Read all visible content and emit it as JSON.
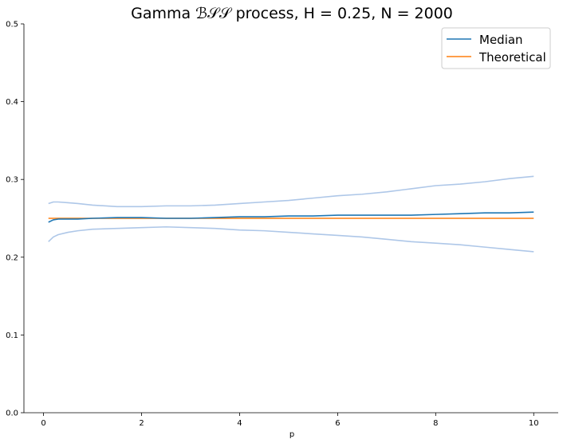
{
  "chart_data": {
    "type": "line",
    "title": "Gamma ℬ𝒮𝒮 process, H = 0.25, N = 2000",
    "xlabel": "p",
    "ylabel": "",
    "xlim": [
      -0.4,
      10.5
    ],
    "ylim": [
      0.0,
      0.5
    ],
    "xticks": [
      0,
      2,
      4,
      6,
      8,
      10
    ],
    "yticks": [
      0.0,
      0.1,
      0.2,
      0.3,
      0.4,
      0.5
    ],
    "xtick_labels": [
      "0",
      "2",
      "4",
      "6",
      "8",
      "10"
    ],
    "ytick_labels": [
      "0.0",
      "0.1",
      "0.2",
      "0.3",
      "0.4",
      "0.5"
    ],
    "grid": false,
    "legend_position": "top-right",
    "legend": [
      "Median",
      "Theoretical"
    ],
    "series": [
      {
        "name": "Median",
        "color": "#1f77b4",
        "x": [
          0.1,
          0.2,
          0.3,
          0.5,
          0.7,
          1.0,
          1.5,
          2.0,
          2.5,
          3.0,
          3.5,
          4.0,
          4.5,
          5.0,
          5.5,
          6.0,
          6.5,
          7.0,
          7.5,
          8.0,
          8.5,
          9.0,
          9.5,
          10.0
        ],
        "y": [
          0.245,
          0.248,
          0.249,
          0.249,
          0.249,
          0.25,
          0.251,
          0.251,
          0.25,
          0.25,
          0.251,
          0.252,
          0.252,
          0.253,
          0.253,
          0.254,
          0.254,
          0.254,
          0.254,
          0.255,
          0.256,
          0.257,
          0.257,
          0.258
        ]
      },
      {
        "name": "Theoretical",
        "color": "#ff7f0e",
        "x": [
          0.1,
          10.0
        ],
        "y": [
          0.25,
          0.25
        ]
      },
      {
        "name": "",
        "color": "#aec7e8",
        "x": [
          0.1,
          0.2,
          0.3,
          0.5,
          0.7,
          1.0,
          1.5,
          2.0,
          2.5,
          3.0,
          3.5,
          4.0,
          4.5,
          5.0,
          5.5,
          6.0,
          6.5,
          7.0,
          7.5,
          8.0,
          8.5,
          9.0,
          9.5,
          10.0
        ],
        "y": [
          0.269,
          0.271,
          0.271,
          0.27,
          0.269,
          0.267,
          0.265,
          0.265,
          0.266,
          0.266,
          0.267,
          0.269,
          0.271,
          0.273,
          0.276,
          0.279,
          0.281,
          0.284,
          0.288,
          0.292,
          0.294,
          0.297,
          0.301,
          0.304
        ]
      },
      {
        "name": "",
        "color": "#aec7e8",
        "x": [
          0.1,
          0.2,
          0.3,
          0.5,
          0.7,
          1.0,
          1.5,
          2.0,
          2.5,
          3.0,
          3.5,
          4.0,
          4.5,
          5.0,
          5.5,
          6.0,
          6.5,
          7.0,
          7.5,
          8.0,
          8.5,
          9.0,
          9.5,
          10.0
        ],
        "y": [
          0.22,
          0.226,
          0.229,
          0.232,
          0.234,
          0.236,
          0.237,
          0.238,
          0.239,
          0.238,
          0.237,
          0.235,
          0.234,
          0.232,
          0.23,
          0.228,
          0.226,
          0.223,
          0.22,
          0.218,
          0.216,
          0.213,
          0.21,
          0.207
        ]
      }
    ]
  }
}
